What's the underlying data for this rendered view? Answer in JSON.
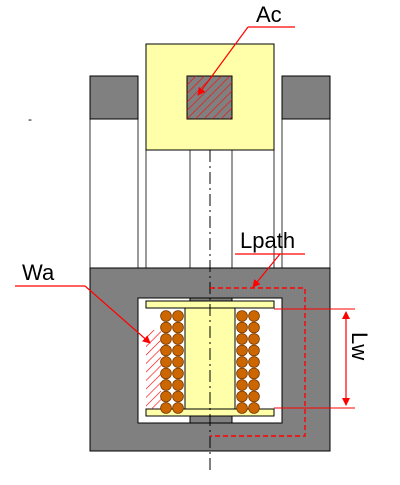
{
  "labels": {
    "core_area": "Ac",
    "window_area": "Wa",
    "path_length": "Lpath",
    "winding_length": "Lw",
    "mark": "-"
  },
  "colors": {
    "core": "#808080",
    "core_dark": "#555555",
    "bobbin": "#ffffaa",
    "wire": "#cc6600",
    "wire_edge": "#7a3a00",
    "annotation": "#ff0000",
    "outline": "#000000"
  },
  "winding": {
    "left_columns": 2,
    "right_columns": 2,
    "turns_per_column": 9
  }
}
